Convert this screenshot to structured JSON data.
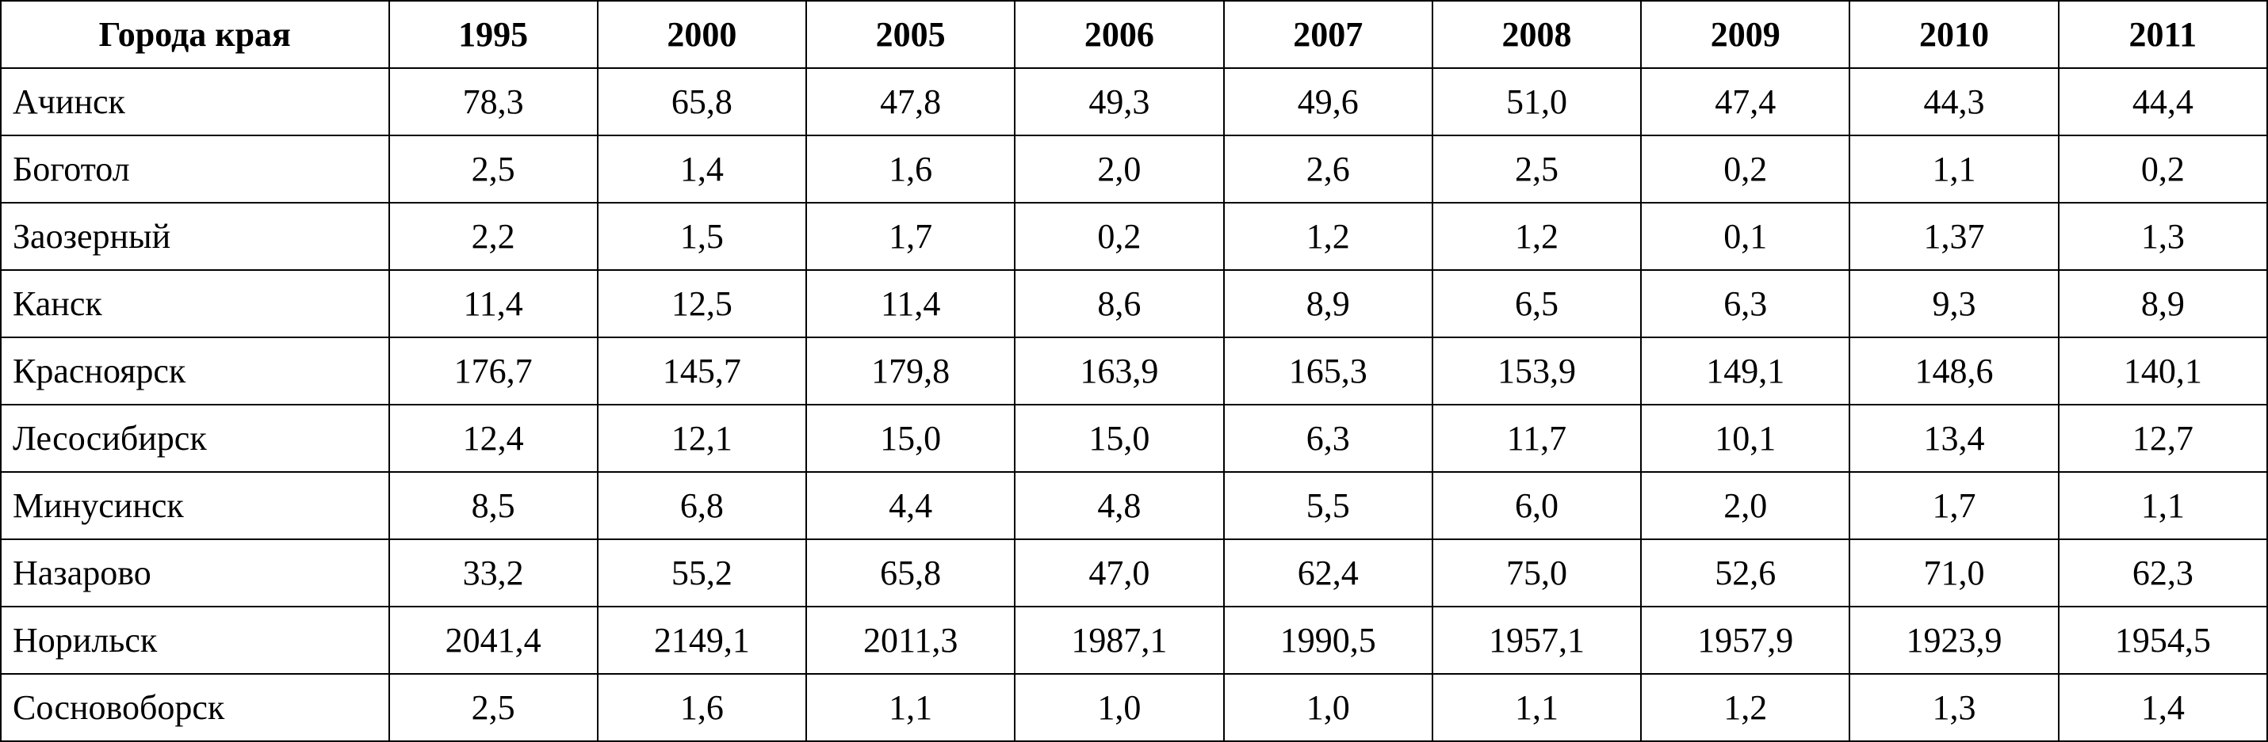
{
  "table": {
    "header": [
      "Города края",
      "1995",
      "2000",
      "2005",
      "2006",
      "2007",
      "2008",
      "2009",
      "2010",
      "2011"
    ],
    "rows": [
      {
        "city": "Ачинск",
        "values": [
          "78,3",
          "65,8",
          "47,8",
          "49,3",
          "49,6",
          "51,0",
          "47,4",
          "44,3",
          "44,4"
        ]
      },
      {
        "city": "Боготол",
        "values": [
          "2,5",
          "1,4",
          "1,6",
          "2,0",
          "2,6",
          "2,5",
          "0,2",
          "1,1",
          "0,2"
        ]
      },
      {
        "city": "Заозерный",
        "values": [
          "2,2",
          "1,5",
          "1,7",
          "0,2",
          "1,2",
          "1,2",
          "0,1",
          "1,37",
          "1,3"
        ]
      },
      {
        "city": "Канск",
        "values": [
          "11,4",
          "12,5",
          "11,4",
          "8,6",
          "8,9",
          "6,5",
          "6,3",
          "9,3",
          "8,9"
        ]
      },
      {
        "city": "Красноярск",
        "values": [
          "176,7",
          "145,7",
          "179,8",
          "163,9",
          "165,3",
          "153,9",
          "149,1",
          "148,6",
          "140,1"
        ]
      },
      {
        "city": "Лесосибирск",
        "values": [
          "12,4",
          "12,1",
          "15,0",
          "15,0",
          "6,3",
          "11,7",
          "10,1",
          "13,4",
          "12,7"
        ]
      },
      {
        "city": "Минусинск",
        "values": [
          "8,5",
          "6,8",
          "4,4",
          "4,8",
          "5,5",
          "6,0",
          "2,0",
          "1,7",
          "1,1"
        ]
      },
      {
        "city": "Назарово",
        "values": [
          "33,2",
          "55,2",
          "65,8",
          "47,0",
          "62,4",
          "75,0",
          "52,6",
          "71,0",
          "62,3"
        ]
      },
      {
        "city": "Норильск",
        "values": [
          "2041,4",
          "2149,1",
          "2011,3",
          "1987,1",
          "1990,5",
          "1957,1",
          "1957,9",
          "1923,9",
          "1954,5"
        ]
      },
      {
        "city": "Сосновоборск",
        "values": [
          "2,5",
          "1,6",
          "1,1",
          "1,0",
          "1,0",
          "1,1",
          "1,2",
          "1,3",
          "1,4"
        ]
      }
    ]
  }
}
